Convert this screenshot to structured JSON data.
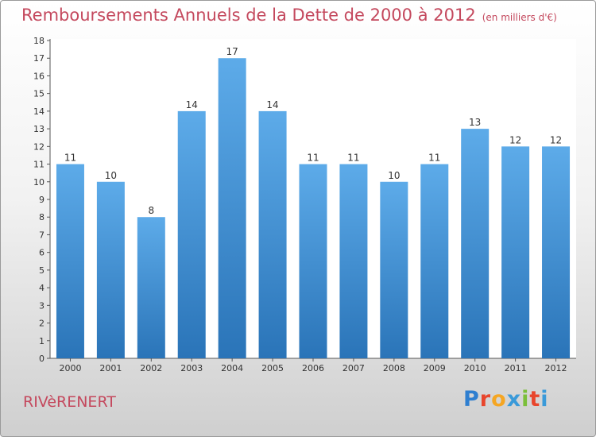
{
  "title": "Remboursements Annuels de la Dette de 2000 à 2012",
  "unit": "(en milliers d'€)",
  "commune": "RIVèRENERT",
  "brand": {
    "letters": [
      "P",
      "r",
      "o",
      "x",
      "i",
      "t",
      "i"
    ],
    "colors": [
      "#2f7fd0",
      "#e8452c",
      "#f5a623",
      "#3a9ad9",
      "#7bbf3a",
      "#e8452c",
      "#3a9ad9"
    ]
  },
  "colors": {
    "title": "#c4485d",
    "bar_top": "#5dabe9",
    "bar_bottom": "#2a74b8",
    "label": "#333333"
  },
  "chart_data": {
    "type": "bar",
    "categories": [
      "2000",
      "2001",
      "2002",
      "2003",
      "2004",
      "2005",
      "2006",
      "2007",
      "2008",
      "2009",
      "2010",
      "2011",
      "2012"
    ],
    "values": [
      11,
      10,
      8,
      14,
      17,
      14,
      11,
      11,
      10,
      11,
      13,
      12,
      12
    ],
    "ylim": [
      0,
      18
    ],
    "yticks": [
      0,
      1,
      2,
      3,
      4,
      5,
      6,
      7,
      8,
      9,
      10,
      11,
      12,
      13,
      14,
      15,
      16,
      17,
      18
    ],
    "grid": false
  }
}
